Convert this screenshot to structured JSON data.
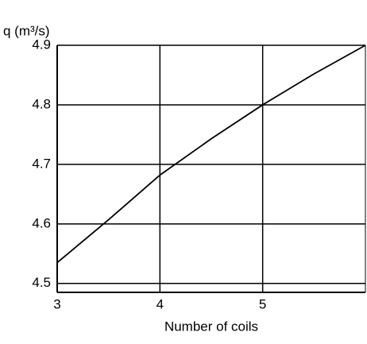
{
  "chart_data": {
    "type": "line",
    "y_label": "q (m³/s)",
    "x_label": "Number of coils",
    "x": [
      3,
      3.5,
      4,
      4.5,
      5,
      5.5,
      6
    ],
    "series": [
      {
        "color": "#000000",
        "values": [
          4.535,
          4.607,
          4.682,
          4.743,
          4.8,
          4.852,
          4.9
        ]
      }
    ],
    "xlim": [
      3,
      6
    ],
    "xticks": [
      3,
      4,
      5
    ],
    "ylim": [
      4.485,
      4.9
    ],
    "yticks": [
      4.5,
      4.6,
      4.7,
      4.8,
      4.9
    ],
    "grid": true
  }
}
